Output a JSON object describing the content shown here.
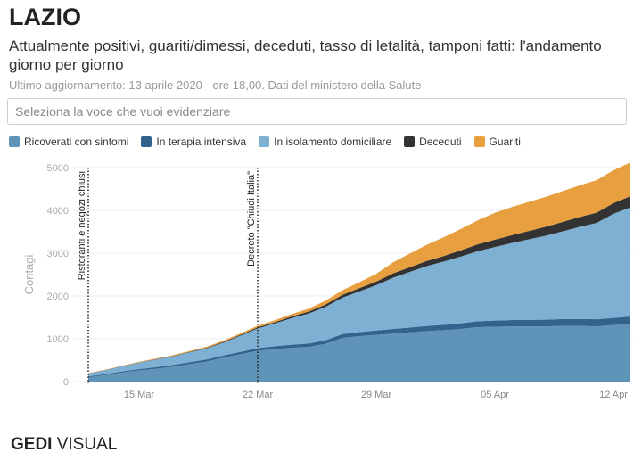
{
  "title": "LAZIO",
  "subtitle": "Attualmente positivi, guariti/dimessi, deceduti, tasso di letalità, tamponi fatti: l'andamento giorno per giorno",
  "updated": "Ultimo aggiornamento: 13 aprile 2020 - ore 18,00. Dati del ministero della Salute",
  "search_placeholder": "Seleziona la voce che vuoi evidenziare",
  "logo": {
    "brand": "GEDI",
    "suffix": " VISUAL"
  },
  "chart_data": {
    "type": "area",
    "stacked": true,
    "ylabel": "Contagi",
    "ylim": [
      0,
      5000
    ],
    "yticks": [
      "0",
      "1000",
      "2000",
      "3000",
      "4000",
      "5000"
    ],
    "xticks": [
      {
        "label": "15 Mar",
        "day": 3
      },
      {
        "label": "22 Mar",
        "day": 10
      },
      {
        "label": "29 Mar",
        "day": 17
      },
      {
        "label": "05 Apr",
        "day": 24
      },
      {
        "label": "12 Apr",
        "day": 31
      }
    ],
    "x_start": "2020-03-12",
    "x_end": "2020-04-13",
    "grid": true,
    "legend_position": "top",
    "annotations": [
      {
        "label": "Ristoranti e negozi chiusi",
        "date": "2020-03-12",
        "day": 0
      },
      {
        "label": "Decreto \"Chiudi Italia\"",
        "date": "2020-03-22",
        "day": 10
      }
    ],
    "series": [
      {
        "name": "Ricoverati con sintomi",
        "color": "#5f93b8",
        "values": [
          100,
          150,
          210,
          260,
          300,
          350,
          410,
          470,
          560,
          640,
          720,
          760,
          790,
          810,
          880,
          1020,
          1060,
          1090,
          1120,
          1150,
          1180,
          1200,
          1230,
          1270,
          1280,
          1290,
          1290,
          1290,
          1300,
          1300,
          1290,
          1320,
          1350
        ]
      },
      {
        "name": "In terapia intensiva",
        "color": "#33638c",
        "values": [
          20,
          24,
          28,
          32,
          36,
          40,
          44,
          48,
          52,
          56,
          60,
          66,
          72,
          78,
          84,
          90,
          96,
          102,
          108,
          114,
          120,
          126,
          132,
          138,
          144,
          148,
          152,
          156,
          160,
          164,
          166,
          168,
          170
        ]
      },
      {
        "name": "In isolamento domiciliare",
        "color": "#7db0d2",
        "values": [
          70,
          90,
          120,
          150,
          180,
          200,
          230,
          260,
          300,
          380,
          460,
          530,
          620,
          700,
          780,
          850,
          950,
          1060,
          1200,
          1300,
          1400,
          1480,
          1560,
          1640,
          1720,
          1800,
          1880,
          1960,
          2050,
          2150,
          2250,
          2430,
          2550
        ]
      },
      {
        "name": "Deceduti",
        "color": "#333333",
        "values": [
          2,
          3,
          4,
          6,
          8,
          10,
          12,
          14,
          17,
          20,
          25,
          30,
          38,
          46,
          55,
          65,
          75,
          85,
          100,
          110,
          120,
          130,
          145,
          160,
          170,
          180,
          195,
          210,
          220,
          230,
          240,
          250,
          260
        ]
      },
      {
        "name": "Guariti",
        "color": "#e89f3f",
        "values": [
          5,
          8,
          10,
          12,
          15,
          18,
          20,
          25,
          30,
          35,
          40,
          45,
          55,
          70,
          90,
          110,
          140,
          180,
          260,
          320,
          380,
          440,
          500,
          560,
          630,
          660,
          680,
          700,
          720,
          740,
          760,
          770,
          790
        ]
      }
    ]
  }
}
